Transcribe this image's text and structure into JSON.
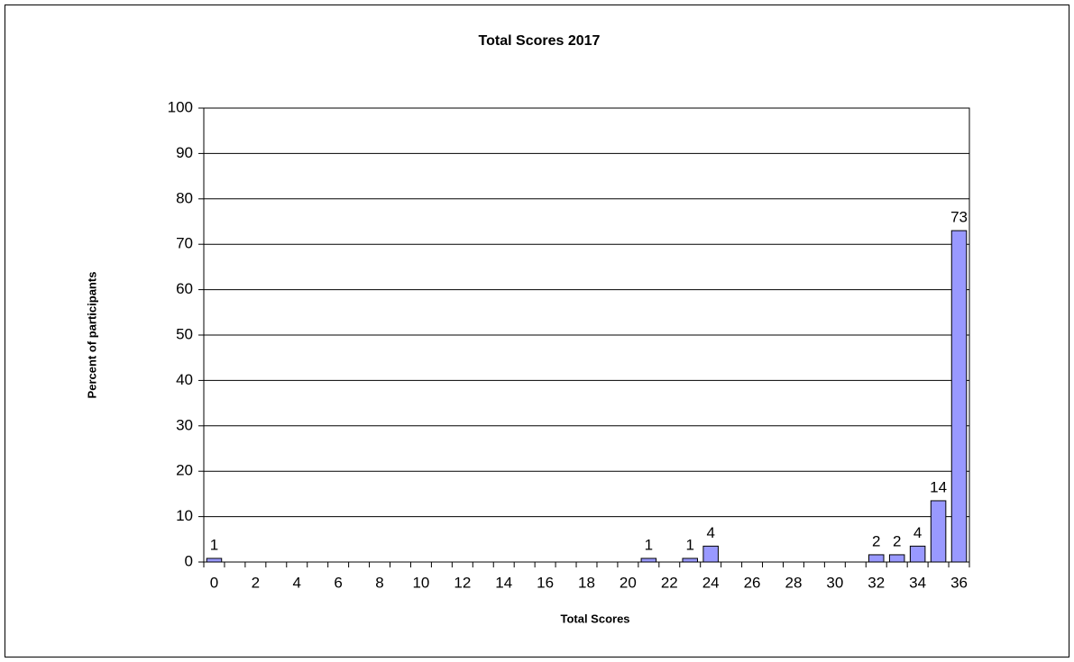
{
  "chart_data": {
    "type": "bar",
    "title": "Total Scores 2017",
    "x_label": "Total Scores",
    "y_label": "Percent of participants",
    "categories": [
      0,
      null,
      2,
      null,
      4,
      null,
      6,
      null,
      8,
      null,
      10,
      null,
      12,
      null,
      14,
      null,
      16,
      null,
      18,
      null,
      20,
      null,
      22,
      null,
      24,
      null,
      26,
      null,
      28,
      null,
      30,
      null,
      32,
      null,
      34,
      null,
      36
    ],
    "values": [
      0.8,
      0,
      0,
      0,
      0,
      0,
      0,
      0,
      0,
      0,
      0,
      0,
      0,
      0,
      0,
      0,
      0,
      0,
      0,
      0,
      0,
      0.8,
      0,
      0.8,
      3.5,
      0,
      0,
      0,
      0,
      0,
      0,
      0,
      1.6,
      1.6,
      3.5,
      13.5,
      73
    ],
    "value_labels": [
      "1",
      null,
      null,
      null,
      null,
      null,
      null,
      null,
      null,
      null,
      null,
      null,
      null,
      null,
      null,
      null,
      null,
      null,
      null,
      null,
      null,
      "1",
      null,
      "1",
      "4",
      null,
      null,
      null,
      null,
      null,
      null,
      null,
      "2",
      "2",
      "4",
      "14",
      "73"
    ],
    "color": "#9999ff",
    "ylim": [
      0,
      100
    ],
    "yticks": [
      0,
      10,
      20,
      30,
      40,
      50,
      60,
      70,
      80,
      90,
      100
    ],
    "grid": true
  }
}
